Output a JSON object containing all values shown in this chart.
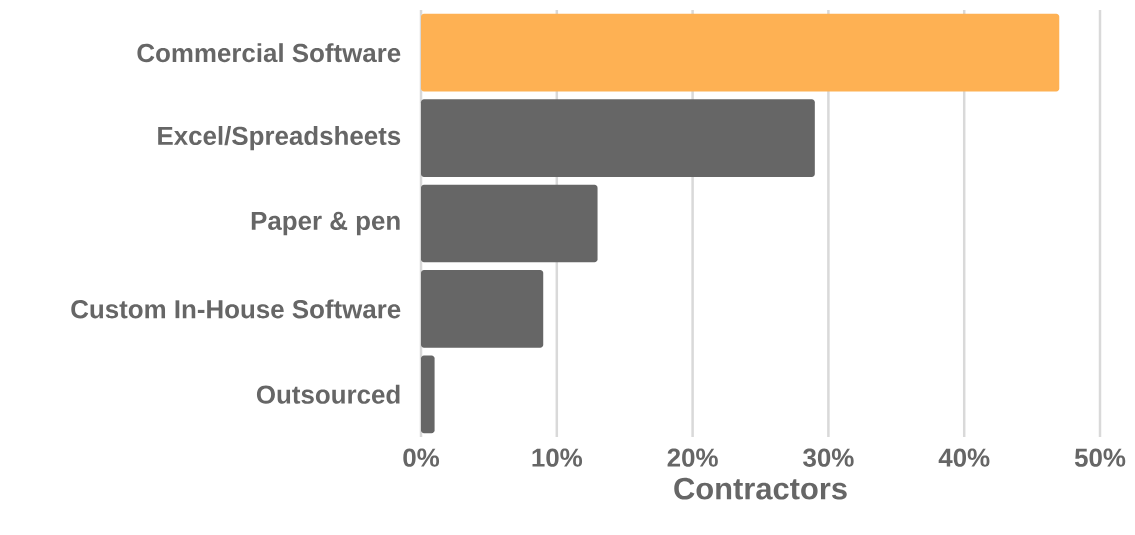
{
  "chart_data": {
    "type": "bar",
    "orientation": "horizontal",
    "xlabel": "Contractors",
    "categories": [
      "Commercial Software",
      "Excel/Spreadsheets",
      "Paper & pen",
      "Custom In-House Software",
      "Outsourced"
    ],
    "values": [
      47,
      29,
      13,
      9,
      1
    ],
    "colors": [
      "#feb153",
      "#666666",
      "#666666",
      "#666666",
      "#666666"
    ],
    "xlim": [
      0,
      50
    ],
    "xticks": [
      {
        "value": 0,
        "label": "0%"
      },
      {
        "value": 10,
        "label": "10%"
      },
      {
        "value": 20,
        "label": "20%"
      },
      {
        "value": 30,
        "label": "30%"
      },
      {
        "value": 40,
        "label": "40%"
      },
      {
        "value": 50,
        "label": "50%"
      }
    ],
    "grid": "x"
  }
}
